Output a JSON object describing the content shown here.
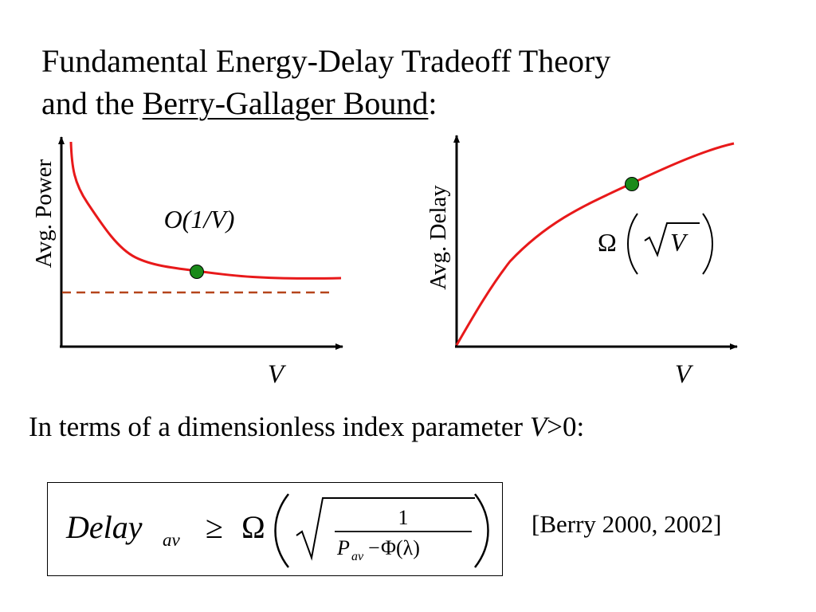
{
  "title": {
    "line1": "Fundamental Energy-Delay Tradeoff Theory",
    "line2_prefix": "and the ",
    "line2_link": "Berry-Gallager Bound",
    "line2_suffix": ":"
  },
  "left_plot": {
    "ylabel": "Avg. Power",
    "xlabel": "V",
    "annotation": "O(1/V)"
  },
  "right_plot": {
    "ylabel": "Avg. Delay",
    "xlabel": "V",
    "annotation_omega": "Ω",
    "annotation_arg": "V"
  },
  "subtitle": {
    "prefix": "In terms of a dimensionless index parameter ",
    "var": "V",
    "suffix": ">0:"
  },
  "formula": {
    "lhs_base": "Delay",
    "lhs_sub": "av",
    "relation": "≥",
    "omega": "Ω",
    "numerator": "1",
    "den_base": "P",
    "den_sub": "av",
    "den_minus": "−",
    "den_phi": "Φ(λ)"
  },
  "citation": "[Berry 2000, 2002]",
  "colors": {
    "curve": "#e8191a",
    "point": "#1a8a1a",
    "dashed": "#b5451b",
    "axis": "#000000"
  }
}
